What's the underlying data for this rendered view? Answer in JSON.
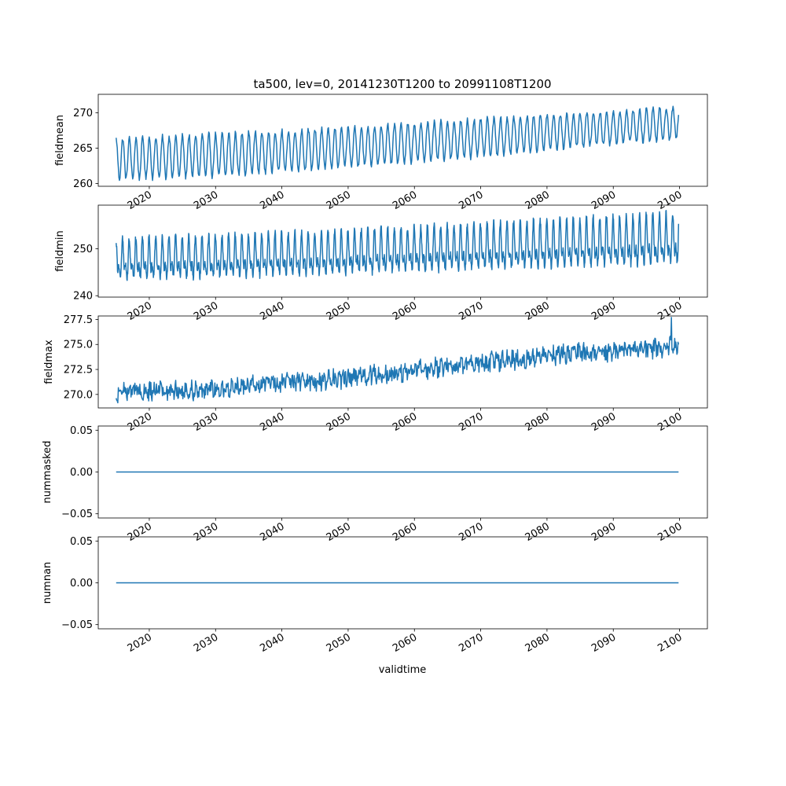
{
  "figure": {
    "title": "ta500, lev=0, 20141230T1200 to 20991108T1200",
    "xlabel": "validtime"
  },
  "chart_data": [
    {
      "type": "line",
      "ylabel": "fieldmean",
      "xlim": [
        2012.3,
        2104.2
      ],
      "ylim": [
        259.6,
        272.6
      ],
      "yticks": [
        260,
        265,
        270
      ],
      "ytick_labels": [
        "260",
        "265",
        "270"
      ],
      "xticks": [
        2020,
        2030,
        2040,
        2050,
        2060,
        2070,
        2080,
        2090,
        2100
      ],
      "xtick_labels": [
        "2020",
        "2030",
        "2040",
        "2050",
        "2060",
        "2070",
        "2080",
        "2090",
        "2100"
      ],
      "color": "#1f77b4",
      "grid": false,
      "series": [
        {
          "x_start": 2015.0,
          "x_end": 2099.85,
          "cycle": "annual",
          "peak_trend": [
            [
              2015,
              266.3
            ],
            [
              2030,
              267.0
            ],
            [
              2050,
              267.9
            ],
            [
              2070,
              269.1
            ],
            [
              2085,
              270.0
            ],
            [
              2099.85,
              270.8
            ]
          ],
          "trough_trend": [
            [
              2015,
              260.6
            ],
            [
              2030,
              261.0
            ],
            [
              2050,
              262.3
            ],
            [
              2070,
              263.8
            ],
            [
              2085,
              265.2
            ],
            [
              2099.85,
              266.3
            ]
          ]
        }
      ]
    },
    {
      "type": "line",
      "ylabel": "fieldmin",
      "xlim": [
        2012.3,
        2104.2
      ],
      "ylim": [
        239.7,
        259.3
      ],
      "yticks": [
        240,
        250
      ],
      "ytick_labels": [
        "240",
        "250"
      ],
      "xticks": [
        2020,
        2030,
        2040,
        2050,
        2060,
        2070,
        2080,
        2090,
        2100
      ],
      "xtick_labels": [
        "2020",
        "2030",
        "2040",
        "2050",
        "2060",
        "2070",
        "2080",
        "2090",
        "2100"
      ],
      "color": "#1f77b4",
      "grid": false,
      "series": [
        {
          "x_start": 2015.0,
          "x_end": 2099.85,
          "cycle": "semiannual",
          "peak_trend": [
            [
              2015,
              252.0
            ],
            [
              2040,
              253.2
            ],
            [
              2060,
              254.5
            ],
            [
              2080,
              256.0
            ],
            [
              2099.85,
              257.5
            ]
          ],
          "trough_trend": [
            [
              2015,
              242.5
            ],
            [
              2040,
              243.2
            ],
            [
              2060,
              244.0
            ],
            [
              2080,
              244.8
            ],
            [
              2099.85,
              245.5
            ]
          ]
        }
      ]
    },
    {
      "type": "line",
      "ylabel": "fieldmax",
      "xlim": [
        2012.3,
        2104.2
      ],
      "ylim": [
        268.65,
        277.85
      ],
      "yticks": [
        270.0,
        272.5,
        275.0,
        277.5
      ],
      "ytick_labels": [
        "270.0",
        "272.5",
        "275.0",
        "277.5"
      ],
      "xticks": [
        2020,
        2030,
        2040,
        2050,
        2060,
        2070,
        2080,
        2090,
        2100
      ],
      "xtick_labels": [
        "2020",
        "2030",
        "2040",
        "2050",
        "2060",
        "2070",
        "2080",
        "2090",
        "2100"
      ],
      "color": "#1f77b4",
      "grid": false,
      "series": [
        {
          "x_start": 2015.0,
          "x_end": 2099.85,
          "cycle": "noisy",
          "trend": [
            [
              2015,
              270.2
            ],
            [
              2030,
              270.5
            ],
            [
              2040,
              271.2
            ],
            [
              2050,
              271.6
            ],
            [
              2060,
              272.4
            ],
            [
              2070,
              273.1
            ],
            [
              2080,
              273.8
            ],
            [
              2090,
              274.3
            ],
            [
              2099.85,
              274.8
            ]
          ],
          "max": [
            2098.8,
            277.7
          ]
        }
      ]
    },
    {
      "type": "line",
      "ylabel": "nummasked",
      "xlim": [
        2012.3,
        2104.2
      ],
      "ylim": [
        -0.055,
        0.055
      ],
      "yticks": [
        -0.05,
        0.0,
        0.05
      ],
      "ytick_labels": [
        "−0.05",
        "0.00",
        "0.05"
      ],
      "xticks": [
        2020,
        2030,
        2040,
        2050,
        2060,
        2070,
        2080,
        2090,
        2100
      ],
      "xtick_labels": [
        "2020",
        "2030",
        "2040",
        "2050",
        "2060",
        "2070",
        "2080",
        "2090",
        "2100"
      ],
      "color": "#1f77b4",
      "grid": false,
      "series": [
        {
          "x": [
            2015.0,
            2099.85
          ],
          "y": [
            0,
            0
          ]
        }
      ]
    },
    {
      "type": "line",
      "ylabel": "numnan",
      "xlim": [
        2012.3,
        2104.2
      ],
      "ylim": [
        -0.055,
        0.055
      ],
      "yticks": [
        -0.05,
        0.0,
        0.05
      ],
      "ytick_labels": [
        "−0.05",
        "0.00",
        "0.05"
      ],
      "xticks": [
        2020,
        2030,
        2040,
        2050,
        2060,
        2070,
        2080,
        2090,
        2100
      ],
      "xtick_labels": [
        "2020",
        "2030",
        "2040",
        "2050",
        "2060",
        "2070",
        "2080",
        "2090",
        "2100"
      ],
      "color": "#1f77b4",
      "grid": false,
      "series": [
        {
          "x": [
            2015.0,
            2099.85
          ],
          "y": [
            0,
            0
          ]
        }
      ]
    }
  ]
}
